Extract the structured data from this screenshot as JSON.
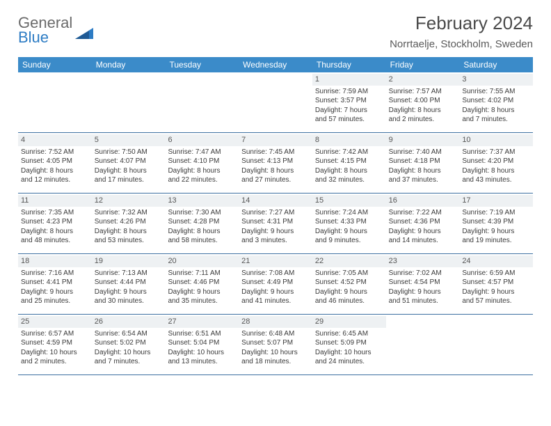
{
  "logo": {
    "general": "General",
    "blue": "Blue"
  },
  "title": "February 2024",
  "location": "Norrtaelje, Stockholm, Sweden",
  "weekdays": [
    "Sunday",
    "Monday",
    "Tuesday",
    "Wednesday",
    "Thursday",
    "Friday",
    "Saturday"
  ],
  "colors": {
    "header_bar": "#3b8bc9",
    "week_border": "#3b6fa0",
    "daynum_bg": "#eef1f3",
    "text": "#3a3a3a",
    "logo_gray": "#6a6a6a",
    "logo_blue": "#2d7cc4"
  },
  "weeks": [
    [
      {
        "n": "",
        "sr": "",
        "ss": "",
        "dl1": "",
        "dl2": ""
      },
      {
        "n": "",
        "sr": "",
        "ss": "",
        "dl1": "",
        "dl2": ""
      },
      {
        "n": "",
        "sr": "",
        "ss": "",
        "dl1": "",
        "dl2": ""
      },
      {
        "n": "",
        "sr": "",
        "ss": "",
        "dl1": "",
        "dl2": ""
      },
      {
        "n": "1",
        "sr": "Sunrise: 7:59 AM",
        "ss": "Sunset: 3:57 PM",
        "dl1": "Daylight: 7 hours",
        "dl2": "and 57 minutes."
      },
      {
        "n": "2",
        "sr": "Sunrise: 7:57 AM",
        "ss": "Sunset: 4:00 PM",
        "dl1": "Daylight: 8 hours",
        "dl2": "and 2 minutes."
      },
      {
        "n": "3",
        "sr": "Sunrise: 7:55 AM",
        "ss": "Sunset: 4:02 PM",
        "dl1": "Daylight: 8 hours",
        "dl2": "and 7 minutes."
      }
    ],
    [
      {
        "n": "4",
        "sr": "Sunrise: 7:52 AM",
        "ss": "Sunset: 4:05 PM",
        "dl1": "Daylight: 8 hours",
        "dl2": "and 12 minutes."
      },
      {
        "n": "5",
        "sr": "Sunrise: 7:50 AM",
        "ss": "Sunset: 4:07 PM",
        "dl1": "Daylight: 8 hours",
        "dl2": "and 17 minutes."
      },
      {
        "n": "6",
        "sr": "Sunrise: 7:47 AM",
        "ss": "Sunset: 4:10 PM",
        "dl1": "Daylight: 8 hours",
        "dl2": "and 22 minutes."
      },
      {
        "n": "7",
        "sr": "Sunrise: 7:45 AM",
        "ss": "Sunset: 4:13 PM",
        "dl1": "Daylight: 8 hours",
        "dl2": "and 27 minutes."
      },
      {
        "n": "8",
        "sr": "Sunrise: 7:42 AM",
        "ss": "Sunset: 4:15 PM",
        "dl1": "Daylight: 8 hours",
        "dl2": "and 32 minutes."
      },
      {
        "n": "9",
        "sr": "Sunrise: 7:40 AM",
        "ss": "Sunset: 4:18 PM",
        "dl1": "Daylight: 8 hours",
        "dl2": "and 37 minutes."
      },
      {
        "n": "10",
        "sr": "Sunrise: 7:37 AM",
        "ss": "Sunset: 4:20 PM",
        "dl1": "Daylight: 8 hours",
        "dl2": "and 43 minutes."
      }
    ],
    [
      {
        "n": "11",
        "sr": "Sunrise: 7:35 AM",
        "ss": "Sunset: 4:23 PM",
        "dl1": "Daylight: 8 hours",
        "dl2": "and 48 minutes."
      },
      {
        "n": "12",
        "sr": "Sunrise: 7:32 AM",
        "ss": "Sunset: 4:26 PM",
        "dl1": "Daylight: 8 hours",
        "dl2": "and 53 minutes."
      },
      {
        "n": "13",
        "sr": "Sunrise: 7:30 AM",
        "ss": "Sunset: 4:28 PM",
        "dl1": "Daylight: 8 hours",
        "dl2": "and 58 minutes."
      },
      {
        "n": "14",
        "sr": "Sunrise: 7:27 AM",
        "ss": "Sunset: 4:31 PM",
        "dl1": "Daylight: 9 hours",
        "dl2": "and 3 minutes."
      },
      {
        "n": "15",
        "sr": "Sunrise: 7:24 AM",
        "ss": "Sunset: 4:33 PM",
        "dl1": "Daylight: 9 hours",
        "dl2": "and 9 minutes."
      },
      {
        "n": "16",
        "sr": "Sunrise: 7:22 AM",
        "ss": "Sunset: 4:36 PM",
        "dl1": "Daylight: 9 hours",
        "dl2": "and 14 minutes."
      },
      {
        "n": "17",
        "sr": "Sunrise: 7:19 AM",
        "ss": "Sunset: 4:39 PM",
        "dl1": "Daylight: 9 hours",
        "dl2": "and 19 minutes."
      }
    ],
    [
      {
        "n": "18",
        "sr": "Sunrise: 7:16 AM",
        "ss": "Sunset: 4:41 PM",
        "dl1": "Daylight: 9 hours",
        "dl2": "and 25 minutes."
      },
      {
        "n": "19",
        "sr": "Sunrise: 7:13 AM",
        "ss": "Sunset: 4:44 PM",
        "dl1": "Daylight: 9 hours",
        "dl2": "and 30 minutes."
      },
      {
        "n": "20",
        "sr": "Sunrise: 7:11 AM",
        "ss": "Sunset: 4:46 PM",
        "dl1": "Daylight: 9 hours",
        "dl2": "and 35 minutes."
      },
      {
        "n": "21",
        "sr": "Sunrise: 7:08 AM",
        "ss": "Sunset: 4:49 PM",
        "dl1": "Daylight: 9 hours",
        "dl2": "and 41 minutes."
      },
      {
        "n": "22",
        "sr": "Sunrise: 7:05 AM",
        "ss": "Sunset: 4:52 PM",
        "dl1": "Daylight: 9 hours",
        "dl2": "and 46 minutes."
      },
      {
        "n": "23",
        "sr": "Sunrise: 7:02 AM",
        "ss": "Sunset: 4:54 PM",
        "dl1": "Daylight: 9 hours",
        "dl2": "and 51 minutes."
      },
      {
        "n": "24",
        "sr": "Sunrise: 6:59 AM",
        "ss": "Sunset: 4:57 PM",
        "dl1": "Daylight: 9 hours",
        "dl2": "and 57 minutes."
      }
    ],
    [
      {
        "n": "25",
        "sr": "Sunrise: 6:57 AM",
        "ss": "Sunset: 4:59 PM",
        "dl1": "Daylight: 10 hours",
        "dl2": "and 2 minutes."
      },
      {
        "n": "26",
        "sr": "Sunrise: 6:54 AM",
        "ss": "Sunset: 5:02 PM",
        "dl1": "Daylight: 10 hours",
        "dl2": "and 7 minutes."
      },
      {
        "n": "27",
        "sr": "Sunrise: 6:51 AM",
        "ss": "Sunset: 5:04 PM",
        "dl1": "Daylight: 10 hours",
        "dl2": "and 13 minutes."
      },
      {
        "n": "28",
        "sr": "Sunrise: 6:48 AM",
        "ss": "Sunset: 5:07 PM",
        "dl1": "Daylight: 10 hours",
        "dl2": "and 18 minutes."
      },
      {
        "n": "29",
        "sr": "Sunrise: 6:45 AM",
        "ss": "Sunset: 5:09 PM",
        "dl1": "Daylight: 10 hours",
        "dl2": "and 24 minutes."
      },
      {
        "n": "",
        "sr": "",
        "ss": "",
        "dl1": "",
        "dl2": ""
      },
      {
        "n": "",
        "sr": "",
        "ss": "",
        "dl1": "",
        "dl2": ""
      }
    ]
  ]
}
